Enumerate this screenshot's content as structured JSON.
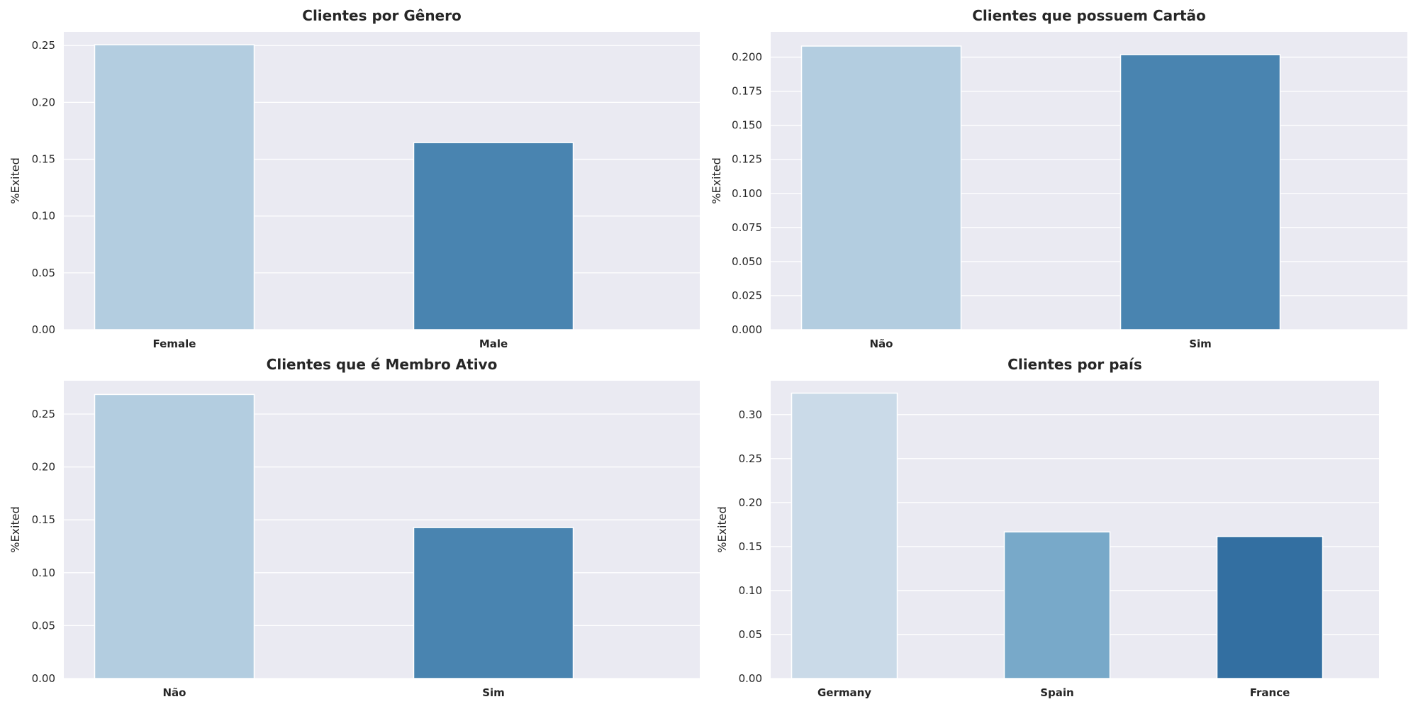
{
  "chart_data": [
    {
      "type": "bar",
      "title": "Clientes por Gênero",
      "ylabel": "%Exited",
      "categories": [
        "Female",
        "Male"
      ],
      "values": [
        0.2507,
        0.1646
      ],
      "colors": [
        "#b3cde0",
        "#4984b0"
      ],
      "ylim": [
        0,
        0.262
      ],
      "yticks": [
        "0.00",
        "0.05",
        "0.10",
        "0.15",
        "0.20",
        "0.25"
      ],
      "grid": true
    },
    {
      "type": "bar",
      "title": "Clientes que possuem Cartão",
      "ylabel": "%Exited",
      "categories": [
        "Não",
        "Sim"
      ],
      "values": [
        0.2081,
        0.2018
      ],
      "colors": [
        "#b3cde0",
        "#4984b0"
      ],
      "ylim": [
        0,
        0.2185
      ],
      "yticks": [
        "0.000",
        "0.025",
        "0.050",
        "0.075",
        "0.100",
        "0.125",
        "0.150",
        "0.175",
        "0.200"
      ],
      "grid": true
    },
    {
      "type": "bar",
      "title": "Clientes que é Membro Ativo",
      "ylabel": "%Exited",
      "categories": [
        "Não",
        "Sim"
      ],
      "values": [
        0.2685,
        0.1427
      ],
      "colors": [
        "#b3cde0",
        "#4984b0"
      ],
      "ylim": [
        0,
        0.2815
      ],
      "yticks": [
        "0.00",
        "0.05",
        "0.10",
        "0.15",
        "0.20",
        "0.25"
      ],
      "grid": true
    },
    {
      "type": "bar",
      "title": "Clientes por país",
      "ylabel": "%Exited",
      "categories": [
        "Germany",
        "Spain",
        "France"
      ],
      "values": [
        0.3244,
        0.1667,
        0.1615
      ],
      "colors": [
        "#cadae8",
        "#78a9c9",
        "#336fa1"
      ],
      "ylim": [
        0,
        0.3385
      ],
      "yticks": [
        "0.00",
        "0.05",
        "0.10",
        "0.15",
        "0.20",
        "0.25",
        "0.30"
      ],
      "grid": true
    }
  ]
}
